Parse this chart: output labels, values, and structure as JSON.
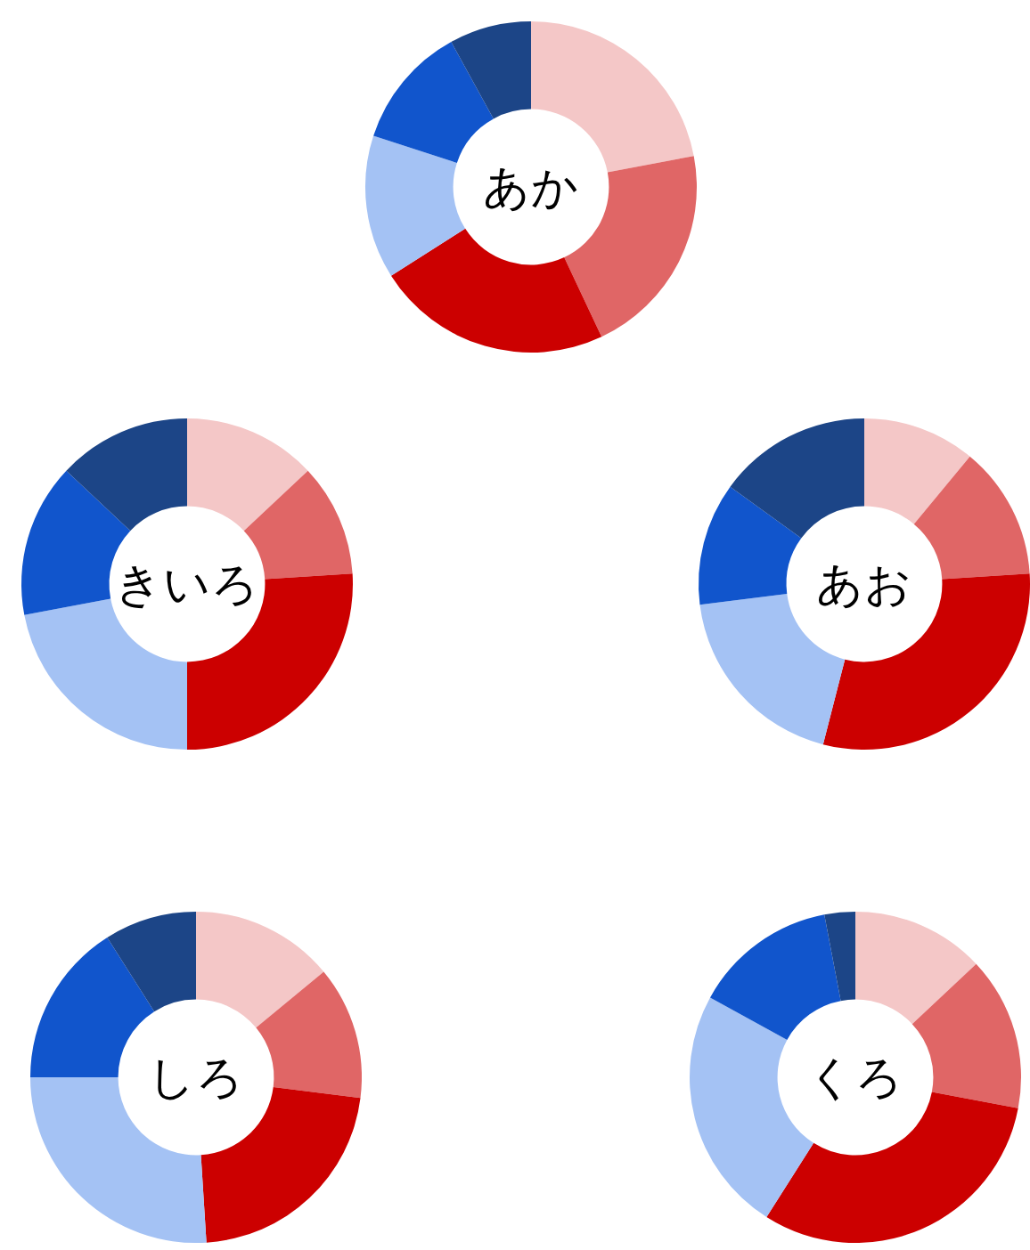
{
  "chart_data": [
    {
      "type": "donut",
      "title": "あか",
      "categories": [
        null,
        null,
        null,
        null,
        null,
        null
      ],
      "values": [
        22,
        21,
        23,
        14,
        12,
        8
      ],
      "colors": [
        "#f4c7c7",
        "#e06666",
        "#cc0000",
        "#a4c2f4",
        "#1155cc",
        "#1c4587"
      ]
    },
    {
      "type": "donut",
      "title": "きいろ",
      "categories": [
        null,
        null,
        null,
        null,
        null,
        null
      ],
      "values": [
        13,
        11,
        26,
        22,
        15,
        13
      ],
      "colors": [
        "#f4c7c7",
        "#e06666",
        "#cc0000",
        "#a4c2f4",
        "#1155cc",
        "#1c4587"
      ]
    },
    {
      "type": "donut",
      "title": "あお",
      "categories": [
        null,
        null,
        null,
        null,
        null,
        null
      ],
      "values": [
        11,
        13,
        30,
        19,
        12,
        15
      ],
      "colors": [
        "#f4c7c7",
        "#e06666",
        "#cc0000",
        "#a4c2f4",
        "#1155cc",
        "#1c4587"
      ]
    },
    {
      "type": "donut",
      "title": "しろ",
      "categories": [
        null,
        null,
        null,
        null,
        null,
        null
      ],
      "values": [
        14,
        13,
        22,
        26,
        16,
        9
      ],
      "colors": [
        "#f4c7c7",
        "#e06666",
        "#cc0000",
        "#a4c2f4",
        "#1155cc",
        "#1c4587"
      ]
    },
    {
      "type": "donut",
      "title": "くろ",
      "categories": [
        null,
        null,
        null,
        null,
        null,
        null
      ],
      "values": [
        13,
        15,
        31,
        24,
        14,
        3
      ],
      "colors": [
        "#f4c7c7",
        "#e06666",
        "#cc0000",
        "#a4c2f4",
        "#1155cc",
        "#1c4587"
      ]
    }
  ]
}
